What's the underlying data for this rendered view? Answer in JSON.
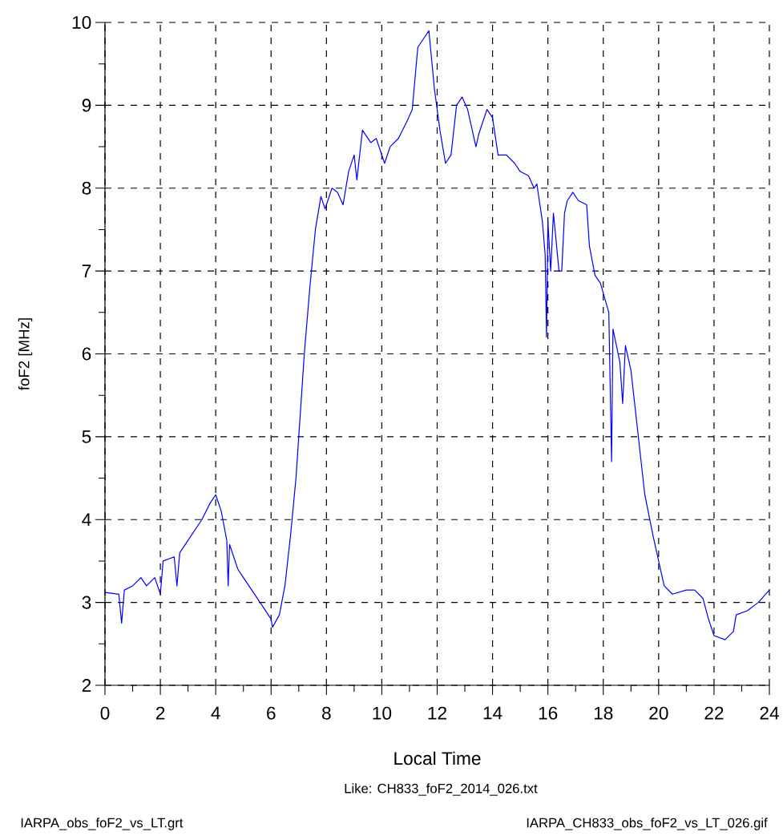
{
  "chart_data": {
    "type": "line",
    "xlabel": "Local Time",
    "ylabel": "foF2 [MHz]",
    "annotations": [
      "Like: CH833_foF2_2014_026.txt",
      "IARPA_obs_foF2_vs_LT.grt",
      "IARPA_CH833_obs_foF2_vs_LT_026.gif"
    ],
    "x": [
      0.0,
      0.5,
      0.6,
      0.7,
      1.0,
      1.3,
      1.5,
      1.8,
      2.0,
      2.1,
      2.5,
      2.6,
      2.7,
      3.0,
      3.5,
      3.8,
      4.0,
      4.2,
      4.4,
      4.45,
      4.5,
      4.8,
      5.0,
      5.5,
      5.8,
      6.0,
      6.05,
      6.3,
      6.5,
      6.7,
      6.9,
      7.0,
      7.2,
      7.4,
      7.6,
      7.8,
      7.95,
      8.2,
      8.4,
      8.6,
      8.8,
      9.0,
      9.1,
      9.3,
      9.6,
      9.8,
      10.1,
      10.3,
      10.6,
      10.9,
      11.1,
      11.3,
      11.6,
      11.7,
      11.9,
      12.1,
      12.3,
      12.5,
      12.7,
      12.9,
      13.1,
      13.4,
      13.5,
      13.8,
      14.0,
      14.2,
      14.5,
      14.8,
      15.0,
      15.3,
      15.5,
      15.6,
      15.8,
      15.9,
      15.95,
      16.0,
      16.1,
      16.2,
      16.4,
      16.5,
      16.6,
      16.7,
      16.9,
      17.1,
      17.4,
      17.5,
      17.7,
      17.9,
      18.2,
      18.3,
      18.35,
      18.6,
      18.7,
      18.8,
      19.0,
      19.3,
      19.5,
      19.8,
      20.0,
      20.2,
      20.5,
      21.0,
      21.3,
      21.6,
      21.8,
      22.0,
      22.4,
      22.7,
      22.8,
      23.2,
      23.6,
      24.0
    ],
    "series": [
      {
        "color": "#0000ff",
        "values": [
          3.12,
          3.1,
          2.75,
          3.15,
          3.2,
          3.3,
          3.2,
          3.3,
          3.1,
          3.5,
          3.55,
          3.2,
          3.6,
          3.75,
          4.0,
          4.2,
          4.3,
          4.1,
          3.75,
          3.2,
          3.7,
          3.4,
          3.3,
          3.05,
          2.9,
          2.8,
          2.7,
          2.85,
          3.2,
          3.8,
          4.5,
          5.0,
          6.0,
          6.8,
          7.5,
          7.9,
          7.75,
          8.0,
          7.95,
          7.8,
          8.2,
          8.4,
          8.1,
          8.7,
          8.55,
          8.6,
          8.3,
          8.5,
          8.6,
          8.8,
          8.95,
          9.7,
          9.85,
          9.9,
          9.2,
          8.7,
          8.3,
          8.4,
          9.0,
          9.1,
          8.95,
          8.5,
          8.65,
          8.95,
          8.85,
          8.4,
          8.4,
          8.3,
          8.2,
          8.15,
          8.0,
          8.05,
          7.6,
          7.2,
          6.2,
          7.6,
          7.0,
          7.7,
          7.0,
          7.0,
          7.7,
          7.85,
          7.95,
          7.85,
          7.8,
          7.3,
          6.95,
          6.85,
          6.5,
          4.7,
          6.3,
          5.9,
          5.4,
          6.1,
          5.8,
          4.9,
          4.3,
          3.8,
          3.5,
          3.2,
          3.1,
          3.15,
          3.15,
          3.05,
          2.8,
          2.6,
          2.55,
          2.65,
          2.85,
          2.9,
          3.0,
          3.15
        ]
      }
    ],
    "xlim": [
      0,
      24
    ],
    "ylim": [
      2,
      10
    ],
    "xticks": [
      0,
      {
        "value": 1,
        "label": null
      },
      2,
      {
        "value": 3,
        "label": null
      },
      4,
      {
        "value": 5,
        "label": null
      },
      6,
      {
        "value": 7,
        "label": null
      },
      8,
      {
        "value": 9,
        "label": null
      },
      10,
      {
        "value": 11,
        "label": null
      },
      12,
      {
        "value": 13,
        "label": null
      },
      14,
      {
        "value": 15,
        "label": null
      },
      16,
      {
        "value": 17,
        "label": null
      },
      18,
      {
        "value": 19,
        "label": null
      },
      20,
      {
        "value": 21,
        "label": null
      },
      22,
      {
        "value": 23,
        "label": null
      },
      24
    ],
    "yticks": [
      2,
      {
        "value": 2.5,
        "label": null
      },
      3,
      {
        "value": 3.5,
        "label": null
      },
      4,
      {
        "value": 4.5,
        "label": null
      },
      5,
      {
        "value": 5.5,
        "label": null
      },
      6,
      {
        "value": 6.5,
        "label": null
      },
      7,
      {
        "value": 7.5,
        "label": null
      },
      8,
      {
        "value": 8.5,
        "label": null
      },
      9,
      {
        "value": 9.5,
        "label": null
      },
      10
    ],
    "grid": true
  }
}
